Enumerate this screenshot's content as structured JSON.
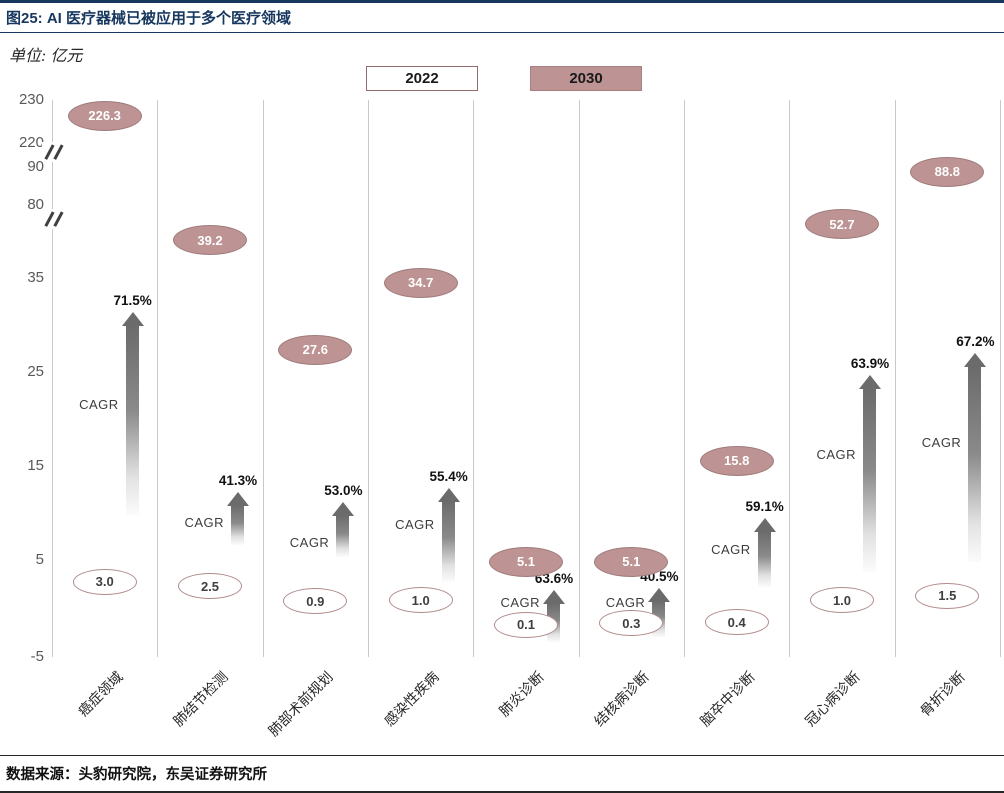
{
  "figure": {
    "title": "图25:  AI 医疗器械已被应用于多个医疗领域",
    "unit_label": "单位: 亿元",
    "source": "数据来源：头豹研究院，东吴证券研究所"
  },
  "legend": {
    "items": [
      {
        "label": "2022",
        "style": "outline"
      },
      {
        "label": "2030",
        "style": "filled"
      }
    ]
  },
  "colors": {
    "title_navy": "#17375E",
    "series_fill": "#BD9393",
    "series_border": "#A07C7C",
    "arrow_gray": "#6B6B6B",
    "divider_gray": "#C9C9C9"
  },
  "chart_data": {
    "type": "scatter",
    "title": "AI 医疗器械已被应用于多个医疗领域",
    "ylabel": "亿元",
    "categories": [
      "癌症领域",
      "肺结节检测",
      "肺部术前规划",
      "感染性疾病",
      "肺炎诊断",
      "结核病诊断",
      "脑卒中诊断",
      "冠心病诊断",
      "骨折诊断"
    ],
    "series": [
      {
        "name": "2022",
        "values": [
          3.0,
          2.5,
          0.9,
          1.0,
          0.1,
          0.3,
          0.4,
          1.0,
          1.5
        ]
      },
      {
        "name": "2030",
        "values": [
          226.3,
          39.2,
          27.6,
          34.7,
          5.1,
          5.1,
          15.8,
          52.7,
          88.8
        ]
      }
    ],
    "cagr_label": "CAGR",
    "cagr_values": [
      "71.5%",
      "41.3%",
      "53.0%",
      "55.4%",
      "63.6%",
      "40.5%",
      "59.1%",
      "63.9%",
      "67.2%"
    ],
    "y_axis": {
      "ticks": [
        230,
        220,
        90,
        80,
        35,
        25,
        15,
        5,
        -5
      ],
      "breaks": 2
    },
    "legend_position": "top",
    "grid": "vertical-dividers"
  }
}
